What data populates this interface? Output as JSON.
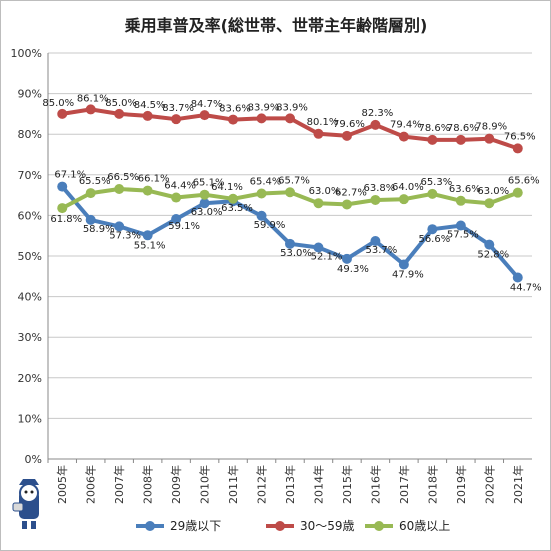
{
  "chart_data": {
    "type": "line",
    "title": "乗用車普及率(総世帯、世帯主年齢階層別)",
    "categories": [
      "2005年",
      "2006年",
      "2007年",
      "2008年",
      "2009年",
      "2010年",
      "2011年",
      "2012年",
      "2013年",
      "2014年",
      "2015年",
      "2016年",
      "2017年",
      "2018年",
      "2019年",
      "2020年",
      "2021年"
    ],
    "ylim": [
      0,
      100
    ],
    "yticks": [
      "0%",
      "10%",
      "20%",
      "30%",
      "40%",
      "50%",
      "60%",
      "70%",
      "80%",
      "90%",
      "100%"
    ],
    "grid": true,
    "legend_position": "bottom",
    "series": [
      {
        "name": "29歳以下",
        "color": "#4a7ebb",
        "values": [
          67.1,
          58.9,
          57.3,
          55.1,
          59.1,
          63.0,
          63.5,
          59.9,
          53.0,
          52.1,
          49.3,
          53.7,
          47.9,
          56.6,
          57.5,
          52.8,
          44.7
        ],
        "labels": [
          "67.1%",
          "58.9%",
          "57.3%",
          "55.1%",
          "59.1%",
          "63.0%",
          "63.5%",
          "59.9%",
          "53.0%",
          "52.1%",
          "49.3%",
          "53.7%",
          "47.9%",
          "56.6%",
          "57.5%",
          "52.8%",
          "44.7%"
        ]
      },
      {
        "name": "30～59歳",
        "color": "#be4b48",
        "values": [
          85.0,
          86.1,
          85.0,
          84.5,
          83.7,
          84.7,
          83.6,
          83.9,
          83.9,
          80.1,
          79.6,
          82.3,
          79.4,
          78.6,
          78.6,
          78.9,
          76.5
        ],
        "labels": [
          "85.0%",
          "86.1%",
          "85.0%",
          "84.5%",
          "83.7%",
          "84.7%",
          "83.6%",
          "83.9%",
          "83.9%",
          "80.1%",
          "79.6%",
          "82.3%",
          "79.4%",
          "78.6%",
          "78.6%",
          "78.9%",
          "76.5%"
        ]
      },
      {
        "name": "60歳以上",
        "color": "#98b954",
        "values": [
          61.8,
          65.5,
          66.5,
          66.1,
          64.4,
          65.1,
          64.1,
          65.4,
          65.7,
          63.0,
          62.7,
          63.8,
          64.0,
          65.3,
          63.6,
          63.0,
          65.6
        ],
        "labels": [
          "61.8%",
          "65.5%",
          "66.5%",
          "66.1%",
          "64.4%",
          "65.1%",
          "64.1%",
          "65.4%",
          "65.7%",
          "63.0%",
          "62.7%",
          "63.8%",
          "64.0%",
          "65.3%",
          "63.6%",
          "63.0%",
          "65.6%"
        ]
      }
    ]
  }
}
